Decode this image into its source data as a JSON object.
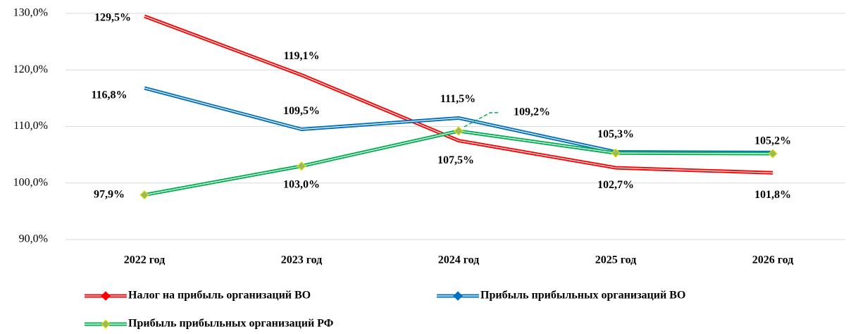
{
  "chart_data": {
    "type": "line",
    "categories": [
      "2022 год",
      "2023 год",
      "2024 год",
      "2025 год",
      "2026 год"
    ],
    "series": [
      {
        "name": "Налог на прибыль организаций ВО",
        "color": "#ff0000",
        "values": [
          129.5,
          119.1,
          107.5,
          102.7,
          101.8
        ],
        "value_labels": [
          "129,5%",
          "119,1%",
          "107,5%",
          "102,7%",
          "101,8%"
        ]
      },
      {
        "name": "Прибыль прибыльных организаций ВО",
        "color": "#0070c0",
        "values": [
          116.8,
          109.5,
          111.5,
          105.5,
          105.4
        ],
        "value_labels": [
          "116,8%",
          "109,5%",
          "111,5%",
          null,
          null
        ]
      },
      {
        "name": "Прибыль прибыльных организаций РФ",
        "color": "#00b050",
        "values": [
          97.9,
          103.0,
          109.2,
          105.3,
          105.2
        ],
        "value_labels": [
          "97,9%",
          "103,0%",
          "109,2%",
          "105,3%",
          "105,2%"
        ]
      }
    ],
    "ylim": [
      90,
      130
    ],
    "yticks": [
      {
        "value": 90,
        "label": "90,0%"
      },
      {
        "value": 100,
        "label": "100,0%"
      },
      {
        "value": 110,
        "label": "110,0%"
      },
      {
        "value": 120,
        "label": "120,0%"
      },
      {
        "value": 130,
        "label": "130,0%"
      }
    ],
    "grid": true,
    "legend": "bottom"
  }
}
